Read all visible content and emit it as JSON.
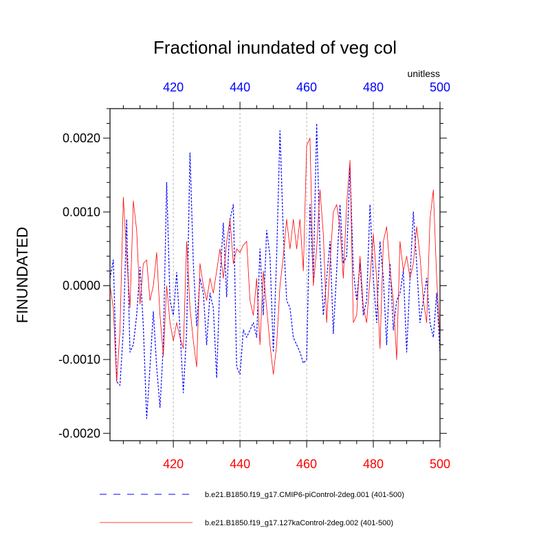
{
  "chart_data": {
    "type": "line",
    "title": "Fractional inundated of veg col",
    "units": "unitless",
    "ylabel": "FINUNDATED",
    "xlabel": "",
    "xlim": [
      401,
      500
    ],
    "ylim": [
      -0.0021,
      0.0024
    ],
    "x_ticks": [
      420,
      440,
      460,
      480,
      500
    ],
    "x_tick_labels": [
      "420",
      "440",
      "460",
      "480",
      "500"
    ],
    "y_ticks": [
      -0.002,
      -0.001,
      0.0,
      0.001,
      0.002
    ],
    "y_tick_labels": [
      "-0.0020",
      "-0.0010",
      "0.0000",
      "0.0010",
      "0.0020"
    ],
    "grid": "vertical dotted at x ticks",
    "legend_position": "bottom",
    "series": [
      {
        "name": "b.e21.B1850.f19_g17.CMIP6-piControl-2deg.001 (401-500)",
        "color": "#0000ff",
        "style": "dashed",
        "x_start": 401,
        "values": [
          0.0001,
          0.00035,
          -0.0013,
          -0.00135,
          -0.0006,
          0.0009,
          -0.0009,
          -0.0008,
          -0.0004,
          0.00025,
          -0.00055,
          -0.0018,
          -0.0011,
          -0.00035,
          -0.0011,
          -0.00165,
          -0.0008,
          0.0014,
          -0.0002,
          -0.0004,
          0.00018,
          -0.0006,
          -0.00145,
          -0.0006,
          0.0018,
          0.0003,
          -0.00055,
          0.0001,
          -0.0001,
          -0.0008,
          -0.0001,
          -0.0003,
          -0.00125,
          0.0001,
          0.00085,
          -0.00015,
          0.0009,
          0.0011,
          -0.0011,
          -0.0012,
          -0.0006,
          -0.0007,
          -0.0006,
          -0.0005,
          -0.0007,
          0.0005,
          -0.0004,
          0.00075,
          0.0004,
          -0.0009,
          0.0004,
          0.0021,
          0.0007,
          -0.0002,
          -0.0003,
          -0.0007,
          -0.0008,
          -0.0009,
          -0.00105,
          -0.001,
          0.0011,
          0.0001,
          0.0022,
          0.0005,
          -0.0004,
          0.0001,
          0.0006,
          -0.00065,
          0.0002,
          0.0011,
          0.0003,
          0.0004,
          0.0016,
          0.0002,
          -0.0002,
          0.0003,
          -0.0004,
          -0.0002,
          0.0011,
          0.0001,
          -0.0005,
          0.0006,
          0.0001,
          -0.0008,
          0.0003,
          -0.0006,
          -0.0002,
          -0.0001,
          0.0002,
          -0.0009,
          0.0001,
          0.001,
          0.0003,
          -0.0005,
          -0.0002,
          0.0001,
          -0.0005,
          -0.0007,
          -0.0001,
          -0.0009
        ]
      },
      {
        "name": "b.e21.B1850.f19_g17.127kaControl-2deg.002 (401-500)",
        "color": "#ff0000",
        "style": "solid",
        "x_start": 401,
        "values": [
          0.0,
          -0.0003,
          -0.0013,
          -0.0006,
          0.0012,
          0.0004,
          -0.0003,
          0.00115,
          0.00075,
          -0.00025,
          0.0003,
          0.00035,
          -0.0002,
          0.0,
          0.00045,
          -0.0004,
          -0.00095,
          0.0,
          -0.0005,
          -0.00075,
          -0.0005,
          -0.0007,
          -0.00085,
          0.0006,
          -0.0003,
          -0.00075,
          -0.0011,
          0.0003,
          0.0,
          -0.0002,
          0.0001,
          -0.0001,
          0.0002,
          0.0005,
          0.0001,
          0.0006,
          0.0009,
          0.0003,
          0.0005,
          0.00045,
          0.00055,
          0.0006,
          -0.0002,
          -0.0004,
          0.0001,
          -0.0008,
          0.0002,
          -0.0003,
          -0.0008,
          -0.0012,
          -0.0008,
          0.0,
          0.0004,
          0.0009,
          0.0005,
          0.0009,
          0.0005,
          0.0009,
          0.0002,
          0.0019,
          0.002,
          0.0,
          0.0005,
          0.0013,
          0.0007,
          -0.0005,
          0.0003,
          0.001,
          0.0011,
          0.0008,
          0.0001,
          0.0011,
          0.0017,
          -0.0005,
          -0.0004,
          0.0004,
          -0.0003,
          -0.0005,
          0.0001,
          0.0007,
          0.0001,
          -0.00085,
          0.0006,
          0.0008,
          0.0002,
          -0.0002,
          -0.001,
          0.0006,
          0.0002,
          0.0004,
          0.0001,
          0.0003,
          0.0008,
          0.0004,
          -0.0002,
          -0.0005,
          0.0009,
          0.0013,
          0.0001,
          -0.0007
        ]
      }
    ]
  }
}
